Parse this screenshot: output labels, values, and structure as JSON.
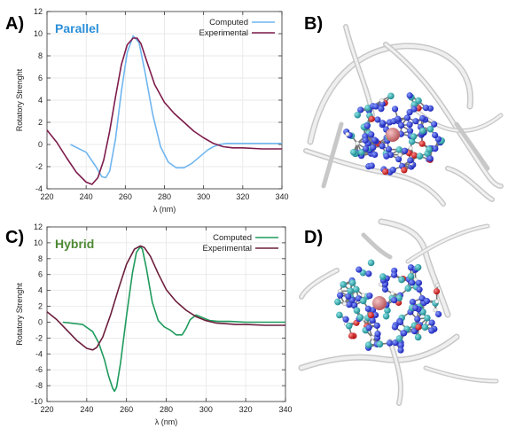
{
  "panels": {
    "a": {
      "label": "A)"
    },
    "b": {
      "label": "B)"
    },
    "c": {
      "label": "C)"
    },
    "d": {
      "label": "D)"
    }
  },
  "chart_data": [
    {
      "id": "A",
      "type": "line",
      "title": "Parallel",
      "title_color": "#2b8fd8",
      "xlabel": "λ (nm)",
      "ylabel": "Rotatory Strenght",
      "xlim": [
        220,
        340
      ],
      "ylim": [
        -4,
        12
      ],
      "xticks": [
        220,
        240,
        260,
        280,
        300,
        320,
        340
      ],
      "yticks": [
        -4,
        -2,
        0,
        2,
        4,
        6,
        8,
        10,
        12
      ],
      "grid": true,
      "legend_position": "top-right",
      "series": [
        {
          "name": "Computed",
          "color": "#6fb6f0",
          "x": [
            232,
            240,
            245,
            248,
            250,
            252,
            255,
            258,
            261,
            264,
            267,
            270,
            274,
            278,
            282,
            286,
            290,
            294,
            298,
            302,
            305,
            308,
            312,
            320,
            330,
            340
          ],
          "y": [
            0,
            -0.7,
            -2.0,
            -2.9,
            -3.0,
            -2.4,
            0.5,
            4.8,
            8.3,
            9.8,
            9.2,
            6.6,
            2.7,
            -0.2,
            -1.6,
            -2.1,
            -2.1,
            -1.7,
            -1.1,
            -0.5,
            -0.2,
            0,
            0.1,
            0.1,
            0.1,
            0.1
          ]
        },
        {
          "name": "Experimental",
          "color": "#7d1b4b",
          "x": [
            220,
            225,
            230,
            235,
            240,
            243,
            246,
            249,
            252,
            255,
            258,
            261,
            264,
            266,
            268,
            271,
            275,
            280,
            285,
            290,
            295,
            300,
            305,
            310,
            315,
            320,
            330,
            340
          ],
          "y": [
            1.3,
            0.2,
            -1.2,
            -2.5,
            -3.4,
            -3.6,
            -3.0,
            -1.4,
            1.2,
            4.3,
            7.2,
            9.0,
            9.6,
            9.6,
            9.1,
            7.5,
            5.4,
            3.8,
            2.8,
            2.0,
            1.2,
            0.6,
            0.1,
            -0.2,
            -0.3,
            -0.3,
            -0.4,
            -0.4
          ]
        }
      ]
    },
    {
      "id": "C",
      "type": "line",
      "title": "Hybrid",
      "title_color": "#4e8a35",
      "xlabel": "λ (nm)",
      "ylabel": "Rotatory Strenght",
      "xlim": [
        220,
        340
      ],
      "ylim": [
        -10,
        12
      ],
      "xticks": [
        220,
        240,
        260,
        280,
        300,
        320,
        340
      ],
      "yticks": [
        -10,
        -8,
        -6,
        -4,
        -2,
        0,
        2,
        4,
        6,
        8,
        10,
        12
      ],
      "grid": true,
      "legend_position": "top-right",
      "series": [
        {
          "name": "Computed",
          "color": "#1e9b5c",
          "x": [
            228,
            238,
            243,
            246,
            249,
            251,
            253,
            254,
            255,
            257,
            260,
            263,
            265,
            267,
            268,
            270,
            273,
            276,
            279,
            282,
            285,
            288,
            290,
            292,
            295,
            298,
            302,
            306,
            312,
            320,
            330,
            340
          ],
          "y": [
            0,
            -0.3,
            -1.2,
            -2.6,
            -4.8,
            -6.8,
            -8.3,
            -8.7,
            -8.2,
            -5.2,
            0.8,
            6.2,
            8.8,
            9.5,
            9.2,
            6.8,
            2.5,
            0.2,
            -0.6,
            -1.0,
            -1.6,
            -1.6,
            -0.8,
            0.3,
            0.9,
            0.6,
            0.2,
            0.1,
            0.1,
            0,
            0,
            0
          ]
        },
        {
          "name": "Experimental",
          "color": "#6b1e3c",
          "x": [
            220,
            225,
            230,
            235,
            240,
            243,
            245,
            248,
            252,
            256,
            260,
            264,
            267,
            269,
            272,
            276,
            280,
            285,
            290,
            295,
            300,
            305,
            310,
            315,
            320,
            330,
            340
          ],
          "y": [
            1.3,
            0.3,
            -1.0,
            -2.3,
            -3.3,
            -3.5,
            -3.2,
            -1.9,
            0.9,
            4.2,
            7.3,
            9.2,
            9.6,
            9.4,
            8.3,
            6.1,
            4.1,
            2.6,
            1.5,
            0.7,
            0.2,
            -0.1,
            -0.2,
            -0.3,
            -0.3,
            -0.4,
            -0.4
          ]
        }
      ]
    }
  ]
}
